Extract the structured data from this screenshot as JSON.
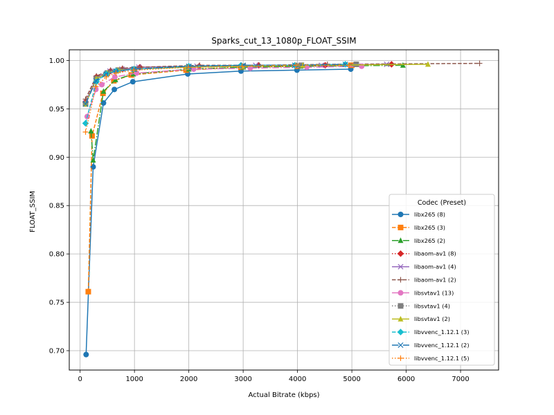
{
  "chart_data": {
    "type": "line",
    "title": "Sparks_cut_13_1080p_FLOAT_SSIM",
    "xlabel": "Actual Bitrate (kbps)",
    "ylabel": "FLOAT_SSIM",
    "xlim": [
      -200,
      7700
    ],
    "ylim": [
      0.68,
      1.011
    ],
    "xticks": [
      0,
      1000,
      2000,
      3000,
      4000,
      5000,
      6000,
      7000
    ],
    "yticks": [
      0.7,
      0.75,
      0.8,
      0.85,
      0.9,
      0.95,
      1.0
    ],
    "xtick_labels": [
      "0",
      "1000",
      "2000",
      "3000",
      "4000",
      "5000",
      "6000",
      "7000"
    ],
    "ytick_labels": [
      "0.70",
      "0.75",
      "0.80",
      "0.85",
      "0.90",
      "0.95",
      "1.00"
    ],
    "grid": true,
    "legend": {
      "title": "Codec (Preset)",
      "placement": "lower-right"
    },
    "series": [
      {
        "name": "libx265 (8)",
        "color": "#1f77b4",
        "marker": "circle",
        "dash": "solid",
        "x": [
          110,
          240,
          430,
          630,
          970,
          1980,
          2960,
          3990,
          4980
        ],
        "y": [
          0.696,
          0.89,
          0.956,
          0.97,
          0.978,
          0.986,
          0.989,
          0.99,
          0.991
        ]
      },
      {
        "name": "libx265 (3)",
        "color": "#ff7f0e",
        "marker": "square",
        "dash": "dashed",
        "x": [
          150,
          220,
          420,
          620,
          940,
          1950,
          2960,
          4000,
          5000
        ],
        "y": [
          0.761,
          0.922,
          0.966,
          0.979,
          0.985,
          0.99,
          0.993,
          0.994,
          0.995
        ]
      },
      {
        "name": "libx265 (2)",
        "color": "#2ca02c",
        "marker": "triangle",
        "dash": "dashdot",
        "x": [
          200,
          240,
          430,
          650,
          980,
          2000,
          3000,
          4060,
          5940
        ],
        "y": [
          0.927,
          0.897,
          0.968,
          0.98,
          0.986,
          0.991,
          0.993,
          0.994,
          0.995
        ]
      },
      {
        "name": "libaom-av1 (8)",
        "color": "#d62728",
        "marker": "diamond",
        "dash": "dotted",
        "x": [
          100,
          300,
          560,
          780,
          1100,
          2190,
          3280,
          4510,
          5730
        ],
        "y": [
          0.957,
          0.983,
          0.989,
          0.991,
          0.993,
          0.994,
          0.995,
          0.995,
          0.996
        ]
      },
      {
        "name": "libaom-av1 (4)",
        "color": "#9467bd",
        "marker": "x",
        "dash": "solid",
        "x": [
          100,
          300,
          550,
          770,
          1080,
          2150,
          3230,
          4440,
          5640
        ],
        "y": [
          0.956,
          0.982,
          0.989,
          0.991,
          0.993,
          0.994,
          0.995,
          0.995,
          0.996
        ]
      },
      {
        "name": "libaom-av1 (2)",
        "color": "#8c564b",
        "marker": "plus",
        "dash": "dashed",
        "x": [
          100,
          300,
          560,
          780,
          1100,
          2200,
          3300,
          4550,
          7350
        ],
        "y": [
          0.96,
          0.984,
          0.99,
          0.992,
          0.993,
          0.995,
          0.995,
          0.996,
          0.997
        ]
      },
      {
        "name": "libsvtav1 (13)",
        "color": "#e377c2",
        "marker": "circle",
        "dash": "dashdot",
        "x": [
          130,
          290,
          400,
          640,
          1040,
          2090,
          3130,
          4170,
          5180
        ],
        "y": [
          0.942,
          0.97,
          0.975,
          0.983,
          0.987,
          0.991,
          0.992,
          0.993,
          0.994
        ]
      },
      {
        "name": "libsvtav1 (4)",
        "color": "#7f7f7f",
        "marker": "square",
        "dash": "dotted",
        "x": [
          100,
          300,
          500,
          700,
          1000,
          2000,
          3000,
          4070,
          5080
        ],
        "y": [
          0.955,
          0.981,
          0.987,
          0.99,
          0.991,
          0.993,
          0.994,
          0.995,
          0.996
        ]
      },
      {
        "name": "libsvtav1 (2)",
        "color": "#bcbd22",
        "marker": "triangle",
        "dash": "solid",
        "x": [
          100,
          300,
          500,
          700,
          1000,
          1960,
          2990,
          4100,
          6400
        ],
        "y": [
          0.955,
          0.981,
          0.987,
          0.99,
          0.991,
          0.993,
          0.994,
          0.995,
          0.996
        ]
      },
      {
        "name": "libvvenc_1.12.1 (3)",
        "color": "#17becf",
        "marker": "diamond",
        "dash": "dashed",
        "x": [
          100,
          300,
          480,
          660,
          990,
          2000,
          2960,
          3950,
          4880
        ],
        "y": [
          0.935,
          0.978,
          0.986,
          0.989,
          0.991,
          0.994,
          0.995,
          0.995,
          0.996
        ]
      },
      {
        "name": "libvvenc_1.12.1 (2)",
        "color": "#1f77b4",
        "marker": "x",
        "dash": "dashdot",
        "x": [
          100,
          290,
          480,
          660,
          990,
          2000,
          3000,
          3950,
          4880
        ],
        "y": [
          0.955,
          0.979,
          0.986,
          0.989,
          0.991,
          0.994,
          0.995,
          0.995,
          0.996
        ]
      },
      {
        "name": "libvvenc_1.12.1 (5)",
        "color": "#ff7f0e",
        "marker": "plus",
        "dash": "dotted",
        "x": [
          100,
          290,
          480,
          660,
          990,
          1990,
          2980,
          3970,
          4940
        ],
        "y": [
          0.926,
          0.973,
          0.983,
          0.987,
          0.99,
          0.993,
          0.994,
          0.995,
          0.995
        ]
      }
    ]
  }
}
